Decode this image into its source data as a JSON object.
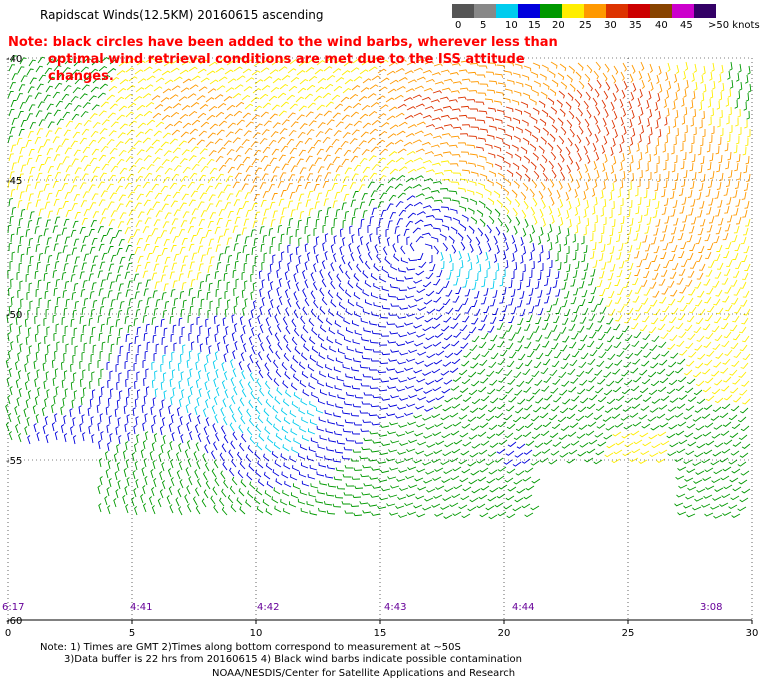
{
  "title": "Rapidscat Winds(12.5KM) 20160615 ascending",
  "note_line1": "Note: black circles have been added to the wind barbs, wherever less than",
  "note_line2": "optimal wind retrieval conditions are met due to the ISS attitude changes.",
  "colorbar": {
    "labels": [
      "0",
      "5",
      "10",
      "15",
      "20",
      "25",
      "30",
      "35",
      "40",
      "45",
      ">50 knots"
    ],
    "colors": [
      "#555555",
      "#888888",
      "#00ccee",
      "#0000dd",
      "#009900",
      "#ffee00",
      "#ff9900",
      "#dd3300",
      "#cc0000",
      "#884400",
      "#cc00cc",
      "#330066"
    ]
  },
  "map": {
    "x_ticks": [
      "0",
      "5",
      "10",
      "15",
      "20",
      "25",
      "30"
    ],
    "y_tick_labels": [
      "-40",
      "-45",
      "-50",
      "-55",
      "-60"
    ],
    "time_labels": [
      "6:17",
      "4:41",
      "4:42",
      "4:43",
      "4:44",
      "3:08"
    ]
  },
  "footer": {
    "line1": "Note: 1) Times are GMT 2)Times along bottom correspond to measurement at ~50S",
    "line2": "3)Data buffer is 22 hrs from 20160615 4) Black wind barbs indicate possible contamination",
    "line3": "NOAA/NESDIS/Center for Satellite Applications and Research"
  }
}
